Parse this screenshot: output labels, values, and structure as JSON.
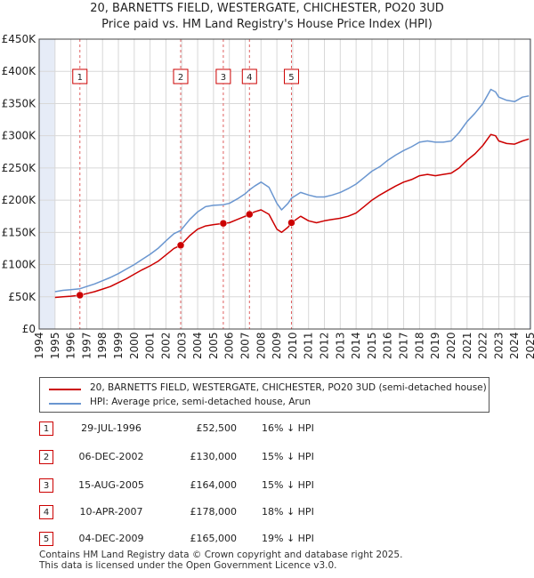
{
  "title_line1": "20, BARNETTS FIELD, WESTERGATE, CHICHESTER, PO20 3UD",
  "title_line2": "Price paid vs. HM Land Registry's House Price Index (HPI)",
  "colors": {
    "price_paid": "#cc0000",
    "hpi": "#6a96d0",
    "shade": "#e6ecf7",
    "grid": "#d8d8d8",
    "vline": "#e06060"
  },
  "chart_data": {
    "type": "line",
    "xlim": [
      1994,
      2025
    ],
    "ylim": [
      0,
      450000
    ],
    "y_ticks": [
      0,
      50000,
      100000,
      150000,
      200000,
      250000,
      300000,
      350000,
      400000,
      450000
    ],
    "y_tick_labels": [
      "£0",
      "£50K",
      "£100K",
      "£150K",
      "£200K",
      "£250K",
      "£300K",
      "£350K",
      "£400K",
      "£450K"
    ],
    "x_ticks": [
      1994,
      1995,
      1996,
      1997,
      1998,
      1999,
      2000,
      2001,
      2002,
      2003,
      2004,
      2005,
      2006,
      2007,
      2008,
      2009,
      2010,
      2011,
      2012,
      2013,
      2014,
      2015,
      2016,
      2017,
      2018,
      2019,
      2020,
      2021,
      2022,
      2023,
      2024,
      2025
    ],
    "x_tick_labels": [
      "1994",
      "1995",
      "1996",
      "1997",
      "1998",
      "1999",
      "2000",
      "2001",
      "2002",
      "2003",
      "2004",
      "2005",
      "2006",
      "2007",
      "2008",
      "2009",
      "2010",
      "2011",
      "2012",
      "2013",
      "2014",
      "2015",
      "2016",
      "2017",
      "2018",
      "2019",
      "2020",
      "2021",
      "2022",
      "2023",
      "2024",
      "2025"
    ],
    "shaded_ranges": [
      [
        1994,
        1995
      ],
      [
        2024.9,
        2025
      ]
    ],
    "series": [
      {
        "name": "20, BARNETTS FIELD, WESTERGATE, CHICHESTER, PO20 3UD (semi-detached house)",
        "x": [
          1995.0,
          1995.5,
          1996.0,
          1996.57,
          1997.0,
          1997.5,
          1998.0,
          1998.5,
          1999.0,
          1999.5,
          2000.0,
          2000.5,
          2001.0,
          2001.5,
          2002.0,
          2002.5,
          2002.93,
          2003.5,
          2004.0,
          2004.5,
          2005.0,
          2005.62,
          2006.0,
          2006.5,
          2007.0,
          2007.27,
          2007.6,
          2008.0,
          2008.5,
          2009.0,
          2009.3,
          2009.7,
          2009.92,
          2010.5,
          2011.0,
          2011.5,
          2012.0,
          2012.5,
          2013.0,
          2013.5,
          2014.0,
          2014.5,
          2015.0,
          2015.5,
          2016.0,
          2016.5,
          2017.0,
          2017.5,
          2018.0,
          2018.5,
          2019.0,
          2019.5,
          2020.0,
          2020.5,
          2021.0,
          2021.5,
          2022.0,
          2022.5,
          2022.8,
          2023.0,
          2023.5,
          2024.0,
          2024.5,
          2024.9
        ],
        "values": [
          49000,
          50000,
          51000,
          52500,
          55000,
          58000,
          62000,
          66000,
          72000,
          78000,
          85000,
          92000,
          98000,
          105000,
          115000,
          125000,
          130000,
          145000,
          155000,
          160000,
          162000,
          164000,
          165000,
          170000,
          175000,
          178000,
          182000,
          185000,
          178000,
          155000,
          150000,
          158000,
          165000,
          175000,
          168000,
          165000,
          168000,
          170000,
          172000,
          175000,
          180000,
          190000,
          200000,
          208000,
          215000,
          222000,
          228000,
          232000,
          238000,
          240000,
          238000,
          240000,
          242000,
          250000,
          262000,
          272000,
          285000,
          302000,
          300000,
          292000,
          288000,
          287000,
          292000,
          295000
        ]
      },
      {
        "name": "HPI: Average price, semi-detached house, Arun",
        "x": [
          1995.0,
          1995.5,
          1996.0,
          1996.57,
          1997.0,
          1997.5,
          1998.0,
          1998.5,
          1999.0,
          1999.5,
          2000.0,
          2000.5,
          2001.0,
          2001.5,
          2002.0,
          2002.5,
          2002.93,
          2003.5,
          2004.0,
          2004.5,
          2005.0,
          2005.62,
          2006.0,
          2006.5,
          2007.0,
          2007.27,
          2007.6,
          2008.0,
          2008.5,
          2009.0,
          2009.3,
          2009.7,
          2009.92,
          2010.5,
          2011.0,
          2011.5,
          2012.0,
          2012.5,
          2013.0,
          2013.5,
          2014.0,
          2014.5,
          2015.0,
          2015.5,
          2016.0,
          2016.5,
          2017.0,
          2017.5,
          2018.0,
          2018.5,
          2019.0,
          2019.5,
          2020.0,
          2020.5,
          2021.0,
          2021.5,
          2022.0,
          2022.5,
          2022.8,
          2023.0,
          2023.5,
          2024.0,
          2024.5,
          2024.9
        ],
        "values": [
          58000,
          60000,
          61000,
          62500,
          66000,
          70000,
          75000,
          80000,
          86000,
          93000,
          100000,
          108000,
          116000,
          125000,
          137000,
          148000,
          153000,
          170000,
          182000,
          190000,
          192000,
          193000,
          195000,
          202000,
          210000,
          216000,
          222000,
          228000,
          220000,
          195000,
          185000,
          195000,
          203000,
          212000,
          208000,
          205000,
          205000,
          208000,
          212000,
          218000,
          225000,
          235000,
          245000,
          252000,
          262000,
          270000,
          277000,
          283000,
          290000,
          292000,
          290000,
          290000,
          292000,
          305000,
          322000,
          335000,
          350000,
          372000,
          368000,
          360000,
          355000,
          353000,
          360000,
          362000
        ]
      }
    ],
    "sales": [
      {
        "label": "1",
        "x": 1996.57,
        "y": 52500
      },
      {
        "label": "2",
        "x": 2002.93,
        "y": 130000
      },
      {
        "label": "3",
        "x": 2005.62,
        "y": 164000
      },
      {
        "label": "4",
        "x": 2007.27,
        "y": 178000
      },
      {
        "label": "5",
        "x": 2009.92,
        "y": 165000
      }
    ]
  },
  "legend": {
    "price_paid_label": "20, BARNETTS FIELD, WESTERGATE, CHICHESTER, PO20 3UD (semi-detached house)",
    "hpi_label": "HPI: Average price, semi-detached house, Arun"
  },
  "transactions": [
    {
      "num": "1",
      "date": "29-JUL-1996",
      "price": "£52,500",
      "hpi": "16% ↓ HPI"
    },
    {
      "num": "2",
      "date": "06-DEC-2002",
      "price": "£130,000",
      "hpi": "15% ↓ HPI"
    },
    {
      "num": "3",
      "date": "15-AUG-2005",
      "price": "£164,000",
      "hpi": "15% ↓ HPI"
    },
    {
      "num": "4",
      "date": "10-APR-2007",
      "price": "£178,000",
      "hpi": "18% ↓ HPI"
    },
    {
      "num": "5",
      "date": "04-DEC-2009",
      "price": "£165,000",
      "hpi": "19% ↓ HPI"
    }
  ],
  "footer_line1": "Contains HM Land Registry data © Crown copyright and database right 2025.",
  "footer_line2": "This data is licensed under the Open Government Licence v3.0."
}
